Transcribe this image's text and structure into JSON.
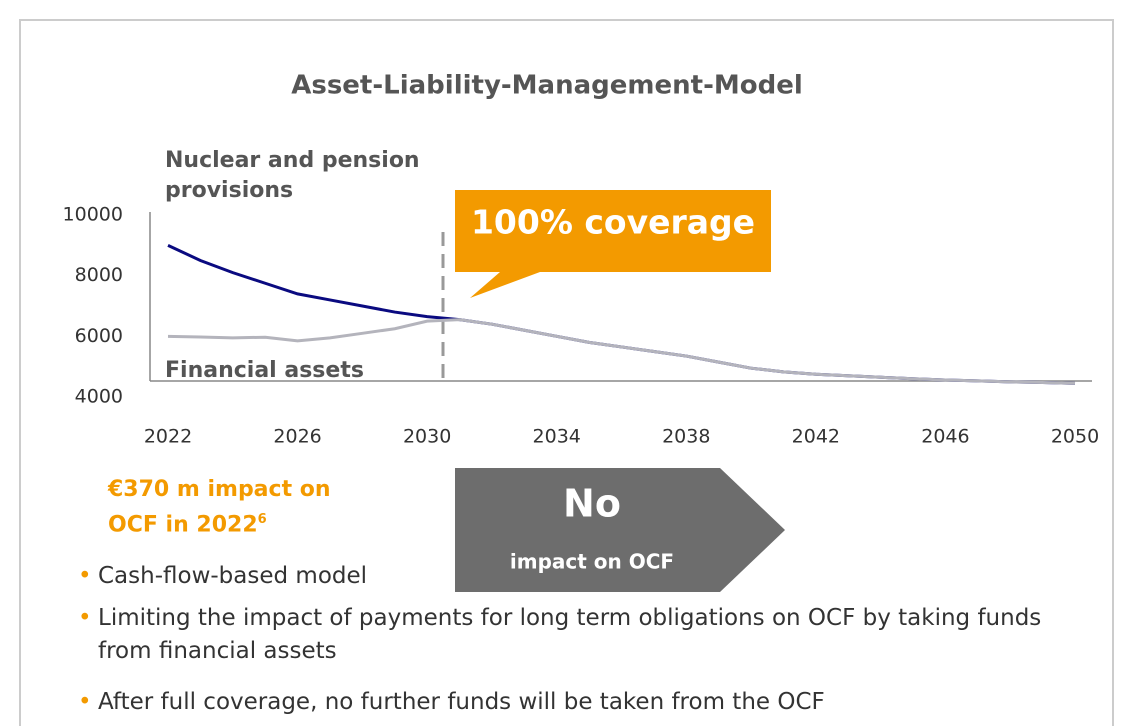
{
  "chart_data": {
    "type": "line",
    "title": "Asset-Liability-Management-Model",
    "x": [
      2022,
      2023,
      2024,
      2025,
      2026,
      2027,
      2028,
      2029,
      2030,
      2031,
      2032,
      2033,
      2034,
      2035,
      2036,
      2037,
      2038,
      2039,
      2040,
      2041,
      2042,
      2043,
      2044,
      2045,
      2046,
      2047,
      2048,
      2049,
      2050
    ],
    "series": [
      {
        "name": "Nuclear and pension provisions",
        "color": "#0a0a80",
        "values": [
          9000,
          8500,
          8100,
          7750,
          7400,
          7200,
          7000,
          6800,
          6650,
          6550,
          6400,
          6200,
          6000,
          5800,
          5650,
          5500,
          5350,
          5150,
          4950,
          4830,
          4750,
          4700,
          4650,
          4600,
          4560,
          4530,
          4500,
          4480,
          4450
        ]
      },
      {
        "name": "Financial assets",
        "color": "#b4b4bc",
        "values": [
          6000,
          5980,
          5950,
          5970,
          5850,
          5950,
          6100,
          6250,
          6500,
          6550,
          6400,
          6200,
          6000,
          5800,
          5650,
          5500,
          5350,
          5150,
          4950,
          4830,
          4750,
          4700,
          4650,
          4600,
          4560,
          4530,
          4500,
          4480,
          4450
        ]
      }
    ],
    "xlim": [
      2022,
      2050
    ],
    "xticks": [
      2022,
      2026,
      2030,
      2034,
      2038,
      2042,
      2046,
      2050
    ],
    "ylim": [
      4000,
      10000
    ],
    "yticks": [
      4000,
      6000,
      8000,
      10000
    ],
    "annotations": {
      "coverage": "100% coverage",
      "no_impact_big": "No",
      "no_impact_small": "impact on OCF",
      "impact": "€370 m impact on OCF in 2022",
      "impact_footnote": "6"
    }
  },
  "bullets": [
    "Cash-flow-based model",
    "Limiting the impact of payments for long term obligations on OCF by taking funds from financial assets",
    "After full coverage, no further funds will be taken from the OCF"
  ]
}
